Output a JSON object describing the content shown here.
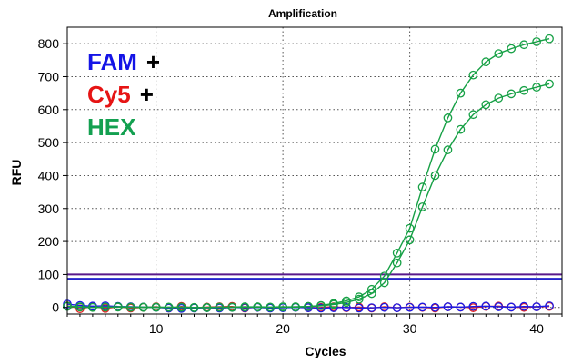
{
  "chart_data": {
    "type": "line",
    "title": "Amplification",
    "xlabel": "Cycles",
    "ylabel": "RFU",
    "xlim": [
      3,
      42
    ],
    "ylim": [
      -20,
      850
    ],
    "x_ticks": [
      10,
      20,
      30,
      40
    ],
    "y_ticks": [
      0,
      100,
      200,
      300,
      400,
      500,
      600,
      700,
      800
    ],
    "grid": true,
    "legend": [
      {
        "text": "FAM",
        "sign": "+",
        "color": "#1414e6"
      },
      {
        "text": "Cy5",
        "sign": "+",
        "color": "#e61414"
      },
      {
        "text": "HEX",
        "sign": "",
        "color": "#13a050"
      }
    ],
    "thresholds": [
      {
        "value": 100,
        "color": "#5a1a8c"
      },
      {
        "value": 87,
        "color": "#2424cc"
      }
    ],
    "x": [
      3,
      4,
      5,
      6,
      7,
      8,
      9,
      10,
      11,
      12,
      13,
      14,
      15,
      16,
      17,
      18,
      19,
      20,
      21,
      22,
      23,
      24,
      25,
      26,
      27,
      28,
      29,
      30,
      31,
      32,
      33,
      34,
      35,
      36,
      37,
      38,
      39,
      40,
      41
    ],
    "series": [
      {
        "color": "#16a045",
        "values": [
          4,
          2,
          0,
          1,
          2,
          1,
          0,
          1,
          0,
          1,
          0,
          -1,
          0,
          1,
          2,
          1,
          0,
          1,
          2,
          3,
          6,
          12,
          20,
          32,
          55,
          95,
          165,
          240,
          365,
          480,
          575,
          650,
          705,
          745,
          770,
          785,
          797,
          806,
          815
        ]
      },
      {
        "color": "#16a045",
        "values": [
          3,
          1,
          0,
          1,
          1,
          0,
          1,
          0,
          1,
          0,
          -1,
          0,
          1,
          0,
          1,
          2,
          1,
          2,
          1,
          3,
          5,
          9,
          15,
          25,
          42,
          75,
          135,
          205,
          305,
          400,
          478,
          540,
          585,
          615,
          635,
          648,
          658,
          668,
          678
        ]
      },
      {
        "color": "#e02020",
        "values": [
          5,
          -4,
          3,
          -3,
          2,
          -2,
          0,
          2,
          -2,
          3,
          -1,
          1,
          2,
          3,
          -2,
          1,
          -1,
          0,
          1,
          -1,
          0,
          2,
          -1,
          1,
          -2,
          2,
          -1,
          1,
          0,
          -2,
          2,
          1,
          -1,
          3,
          4,
          1,
          0,
          2,
          3
        ]
      },
      {
        "color": "#1a1ae6",
        "values": [
          10,
          6,
          4,
          5,
          3,
          2,
          1,
          0,
          -2,
          -3,
          -2,
          -1,
          -2,
          0,
          -1,
          0,
          -2,
          -1,
          0,
          -1,
          -2,
          -1,
          0,
          -2,
          -1,
          0,
          -1,
          0,
          1,
          0,
          2,
          1,
          3,
          4,
          2,
          1,
          3,
          2,
          5
        ]
      }
    ]
  }
}
